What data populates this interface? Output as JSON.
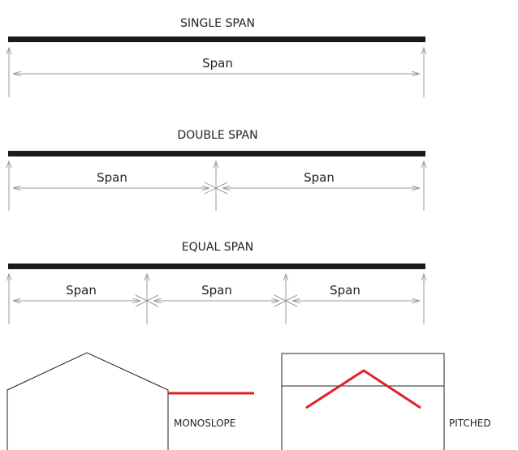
{
  "single_span": {
    "title": "SINGLE SPAN",
    "spans": [
      "Span"
    ]
  },
  "double_span": {
    "title": "DOUBLE SPAN",
    "spans": [
      "Span",
      "Span"
    ]
  },
  "equal_span": {
    "title": "EQUAL SPAN",
    "spans": [
      "Span",
      "Span",
      "Span"
    ]
  },
  "roof_types": {
    "monoslope": "MONOSLOPE",
    "pitched": "PITCHED"
  },
  "colors": {
    "beam": "#1a1a1a",
    "dimension_line": "#9a9a9a",
    "outline": "#222222",
    "slope_line": "#e0202a"
  }
}
